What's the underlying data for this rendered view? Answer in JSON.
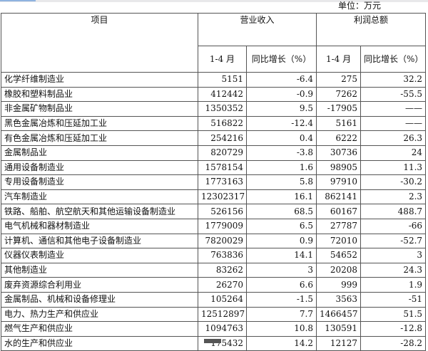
{
  "unit_label": "单位：万元",
  "header": {
    "item": "项目",
    "revenue": "营业收入",
    "profit": "利润总额",
    "period": "1-4 月",
    "yoy": "同比增长（%）"
  },
  "rows": [
    {
      "name": "化学纤维制造业",
      "rev": "5151",
      "rev_yoy": "-6.4",
      "profit": "275",
      "profit_yoy": "32.2"
    },
    {
      "name": "橡胶和塑料制品业",
      "rev": "412442",
      "rev_yoy": "-0.9",
      "profit": "7262",
      "profit_yoy": "-55.5"
    },
    {
      "name": "非金属矿物制品业",
      "rev": "1350352",
      "rev_yoy": "9.5",
      "profit": "-17905",
      "profit_yoy": "——"
    },
    {
      "name": "黑色金属冶炼和压延加工业",
      "rev": "516822",
      "rev_yoy": "-12.4",
      "profit": "5161",
      "profit_yoy": "——"
    },
    {
      "name": "有色金属冶炼和压延加工业",
      "rev": "254216",
      "rev_yoy": "0.4",
      "profit": "6222",
      "profit_yoy": "26.3"
    },
    {
      "name": "金属制品业",
      "rev": "820729",
      "rev_yoy": "-3.8",
      "profit": "30736",
      "profit_yoy": "24"
    },
    {
      "name": "通用设备制造业",
      "rev": "1578154",
      "rev_yoy": "1.6",
      "profit": "98905",
      "profit_yoy": "11.3"
    },
    {
      "name": "专用设备制造业",
      "rev": "1773163",
      "rev_yoy": "5.8",
      "profit": "97910",
      "profit_yoy": "-30.2"
    },
    {
      "name": "汽车制造业",
      "rev": "12302317",
      "rev_yoy": "16.1",
      "profit": "862141",
      "profit_yoy": "2.3"
    },
    {
      "name": "铁路、船舶、航空航天和其他运输设备制造业",
      "rev": "526156",
      "rev_yoy": "68.5",
      "profit": "60167",
      "profit_yoy": "488.7"
    },
    {
      "name": "电气机械和器材制造业",
      "rev": "1779009",
      "rev_yoy": "6.5",
      "profit": "27787",
      "profit_yoy": "-66"
    },
    {
      "name": "计算机、通信和其他电子设备制造业",
      "rev": "7820029",
      "rev_yoy": "0.9",
      "profit": "72010",
      "profit_yoy": "-52.7"
    },
    {
      "name": "仪器仪表制造业",
      "rev": "763836",
      "rev_yoy": "14.1",
      "profit": "54652",
      "profit_yoy": "3"
    },
    {
      "name": "其他制造业",
      "rev": "83262",
      "rev_yoy": "3",
      "profit": "20208",
      "profit_yoy": "24.3"
    },
    {
      "name": "废弃资源综合利用业",
      "rev": "26270",
      "rev_yoy": "6.6",
      "profit": "999",
      "profit_yoy": "1.9"
    },
    {
      "name": "金属制品、机械和设备修理业",
      "rev": "105264",
      "rev_yoy": "-1.5",
      "profit": "3563",
      "profit_yoy": "-51"
    },
    {
      "name": "电力、热力生产和供应业",
      "rev": "12512897",
      "rev_yoy": "7.7",
      "profit": "1466457",
      "profit_yoy": "51.5"
    },
    {
      "name": "燃气生产和供应业",
      "rev": "1094763",
      "rev_yoy": "10.8",
      "profit": "130591",
      "profit_yoy": "-12.8"
    },
    {
      "name": "水的生产和供应业",
      "rev": "175432",
      "rev_yoy": "14.2",
      "profit": "12127",
      "profit_yoy": "-28.2"
    }
  ]
}
